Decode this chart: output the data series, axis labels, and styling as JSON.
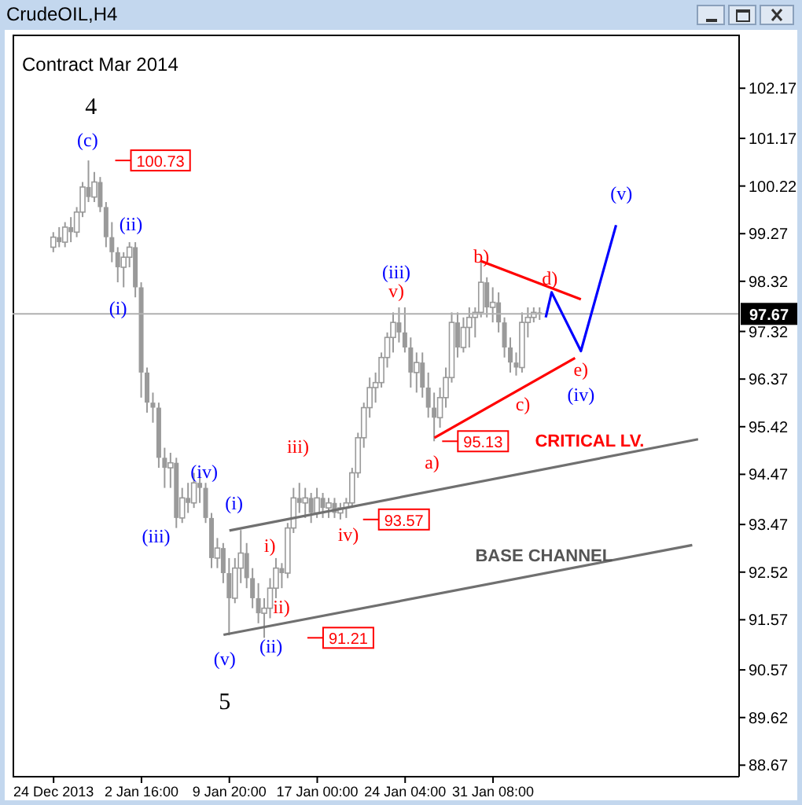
{
  "chart_data": {
    "type": "candlestick",
    "title": "CrudeOIL,H4",
    "subtitle": "Contract Mar 2014",
    "color": "#9a9a9a",
    "categories": [
      "24 Dec 2013",
      null,
      null,
      null,
      null,
      null,
      null,
      null,
      null,
      null,
      null,
      null,
      null,
      null,
      null,
      "2 Jan 16:00",
      null,
      null,
      null,
      null,
      null,
      null,
      null,
      null,
      null,
      null,
      null,
      null,
      null,
      null,
      "9 Jan 20:00",
      null,
      null,
      null,
      null,
      null,
      null,
      null,
      null,
      null,
      null,
      null,
      null,
      null,
      null,
      "17 Jan 00:00",
      null,
      null,
      null,
      null,
      null,
      null,
      null,
      null,
      null,
      null,
      null,
      null,
      null,
      null,
      "24 Jan 04:00",
      null,
      null,
      null,
      null,
      null,
      null,
      null,
      null,
      null,
      null,
      null,
      null,
      null,
      null,
      "31 Jan 08:00",
      null,
      null,
      null,
      null,
      null,
      null,
      null,
      null,
      null,
      null,
      null,
      null,
      null,
      null,
      null,
      null,
      null,
      null,
      null,
      null,
      null,
      null,
      null,
      null,
      null,
      null,
      null,
      null,
      null,
      null,
      null,
      null,
      null,
      null,
      null
    ],
    "ohlc": [
      [
        99.0,
        99.3,
        98.9,
        99.2
      ],
      [
        99.2,
        99.4,
        99.0,
        99.1
      ],
      [
        99.1,
        99.5,
        99.0,
        99.4
      ],
      [
        99.4,
        99.6,
        99.1,
        99.3
      ],
      [
        99.3,
        99.8,
        99.2,
        99.7
      ],
      [
        99.7,
        100.3,
        99.6,
        100.2
      ],
      [
        100.2,
        100.73,
        99.9,
        100.0
      ],
      [
        100.0,
        100.5,
        99.9,
        100.3
      ],
      [
        100.3,
        100.4,
        99.7,
        99.8
      ],
      [
        99.8,
        99.9,
        99.0,
        99.2
      ],
      [
        99.2,
        99.5,
        98.7,
        98.9
      ],
      [
        98.9,
        99.0,
        98.3,
        98.6
      ],
      [
        98.6,
        98.9,
        98.2,
        98.8
      ],
      [
        98.8,
        99.1,
        98.6,
        99.0
      ],
      [
        99.0,
        99.1,
        98.0,
        98.2
      ],
      [
        98.2,
        98.3,
        96.0,
        96.5
      ],
      [
        96.5,
        96.6,
        95.7,
        95.9
      ],
      [
        95.9,
        96.1,
        95.5,
        95.8
      ],
      [
        95.8,
        95.9,
        94.6,
        94.8
      ],
      [
        94.8,
        95.0,
        94.2,
        94.6
      ],
      [
        94.6,
        94.9,
        94.2,
        94.7
      ],
      [
        94.7,
        94.8,
        93.4,
        93.6
      ],
      [
        93.6,
        94.2,
        93.5,
        94.0
      ],
      [
        94.0,
        94.3,
        93.7,
        93.9
      ],
      [
        93.9,
        94.5,
        93.8,
        94.3
      ],
      [
        94.3,
        94.5,
        93.9,
        94.2
      ],
      [
        94.2,
        94.3,
        93.5,
        93.6
      ],
      [
        93.6,
        93.7,
        92.6,
        92.8
      ],
      [
        92.8,
        93.2,
        92.6,
        93.0
      ],
      [
        93.0,
        93.1,
        92.3,
        92.5
      ],
      [
        92.5,
        92.8,
        91.26,
        92.0
      ],
      [
        92.0,
        92.8,
        91.9,
        92.6
      ],
      [
        92.6,
        93.36,
        92.3,
        92.9
      ],
      [
        92.9,
        93.1,
        92.2,
        92.4
      ],
      [
        92.4,
        92.6,
        91.8,
        92.0
      ],
      [
        92.0,
        92.3,
        91.5,
        91.7
      ],
      [
        91.7,
        92.0,
        91.21,
        91.8
      ],
      [
        91.8,
        92.4,
        91.6,
        92.2
      ],
      [
        92.2,
        92.8,
        92.0,
        92.6
      ],
      [
        92.6,
        92.7,
        92.2,
        92.5
      ],
      [
        92.5,
        93.5,
        92.4,
        93.4
      ],
      [
        93.4,
        94.2,
        93.3,
        94.0
      ],
      [
        94.0,
        94.3,
        93.7,
        93.9
      ],
      [
        93.9,
        94.2,
        93.6,
        94.0
      ],
      [
        94.0,
        94.1,
        93.5,
        93.7
      ],
      [
        93.7,
        94.2,
        93.6,
        94.0
      ],
      [
        94.0,
        94.1,
        93.6,
        93.8
      ],
      [
        93.8,
        94.0,
        93.6,
        93.9
      ],
      [
        93.9,
        94.0,
        93.6,
        93.7
      ],
      [
        93.7,
        93.9,
        93.57,
        93.8
      ],
      [
        93.8,
        94.0,
        93.6,
        93.9
      ],
      [
        93.9,
        94.6,
        93.8,
        94.5
      ],
      [
        94.5,
        95.3,
        94.4,
        95.2
      ],
      [
        95.2,
        95.9,
        95.0,
        95.8
      ],
      [
        95.8,
        96.4,
        95.6,
        96.2
      ],
      [
        96.2,
        96.5,
        95.9,
        96.3
      ],
      [
        96.3,
        96.9,
        96.2,
        96.8
      ],
      [
        96.8,
        97.3,
        96.6,
        97.2
      ],
      [
        97.2,
        97.7,
        96.9,
        97.5
      ],
      [
        97.5,
        97.8,
        97.1,
        97.3
      ],
      [
        97.3,
        97.8,
        96.9,
        97.0
      ],
      [
        97.0,
        97.2,
        96.2,
        96.5
      ],
      [
        96.5,
        96.9,
        96.1,
        96.7
      ],
      [
        96.7,
        96.9,
        96.0,
        96.2
      ],
      [
        96.2,
        96.5,
        95.6,
        95.8
      ],
      [
        95.8,
        96.1,
        95.13,
        95.6
      ],
      [
        95.6,
        96.2,
        95.4,
        96.0
      ],
      [
        96.0,
        96.6,
        95.8,
        96.4
      ],
      [
        96.4,
        97.7,
        96.3,
        97.5
      ],
      [
        97.5,
        97.7,
        96.8,
        97.0
      ],
      [
        97.0,
        97.6,
        96.9,
        97.4
      ],
      [
        97.4,
        97.8,
        97.0,
        97.6
      ],
      [
        97.6,
        97.8,
        97.2,
        97.7
      ],
      [
        97.7,
        98.72,
        97.6,
        98.3
      ],
      [
        98.3,
        98.4,
        97.6,
        97.8
      ],
      [
        97.8,
        98.2,
        97.5,
        97.9
      ],
      [
        97.9,
        98.1,
        97.3,
        97.5
      ],
      [
        97.5,
        97.6,
        96.8,
        97.0
      ],
      [
        97.0,
        97.2,
        96.5,
        96.7
      ],
      [
        96.7,
        96.9,
        96.44,
        96.6
      ],
      [
        96.6,
        97.7,
        96.5,
        97.5
      ],
      [
        97.5,
        97.8,
        97.2,
        97.6
      ],
      [
        97.6,
        97.8,
        97.5,
        97.7
      ],
      [
        97.7,
        97.8,
        97.55,
        97.67
      ],
      null,
      null,
      null,
      null,
      null,
      null,
      null,
      null,
      null,
      null,
      null,
      null,
      null,
      null,
      null,
      null,
      null,
      null,
      null,
      null,
      null,
      null,
      null,
      null,
      null,
      null,
      null
    ],
    "series": [
      {
        "type": "line",
        "color": "#707070",
        "values": [
          null,
          null,
          null,
          null,
          null,
          null,
          null,
          null,
          null,
          null,
          null,
          null,
          null,
          null,
          null,
          null,
          null,
          null,
          null,
          null,
          null,
          null,
          null,
          null,
          null,
          null,
          null,
          null,
          null,
          null,
          93.35,
          null,
          null,
          null,
          null,
          null,
          null,
          null,
          null,
          null,
          null,
          null,
          null,
          null,
          null,
          null,
          null,
          null,
          null,
          null,
          null,
          null,
          null,
          null,
          null,
          null,
          null,
          null,
          null,
          null,
          null,
          null,
          null,
          null,
          null,
          null,
          null,
          null,
          null,
          null,
          null,
          null,
          null,
          null,
          null,
          null,
          null,
          null,
          null,
          null,
          null,
          null,
          null,
          null,
          null,
          null,
          null,
          null,
          null,
          null,
          null,
          null,
          null,
          null,
          null,
          null,
          null,
          null,
          null,
          null,
          null,
          null,
          null,
          null,
          null,
          null,
          null,
          null,
          null,
          null,
          95.17
        ]
      },
      {
        "type": "line",
        "color": "#707070",
        "values": [
          null,
          null,
          null,
          null,
          null,
          null,
          null,
          null,
          null,
          null,
          null,
          null,
          null,
          null,
          null,
          null,
          null,
          null,
          null,
          null,
          null,
          null,
          null,
          null,
          null,
          null,
          null,
          null,
          null,
          91.27,
          null,
          null,
          null,
          null,
          null,
          null,
          null,
          null,
          null,
          null,
          null,
          null,
          null,
          null,
          null,
          null,
          null,
          null,
          null,
          null,
          null,
          null,
          null,
          null,
          null,
          null,
          null,
          null,
          null,
          null,
          null,
          null,
          null,
          null,
          null,
          null,
          null,
          null,
          null,
          null,
          null,
          null,
          null,
          null,
          null,
          null,
          null,
          null,
          null,
          null,
          null,
          null,
          null,
          null,
          null,
          null,
          null,
          null,
          null,
          null,
          null,
          null,
          null,
          null,
          null,
          null,
          null,
          null,
          null,
          null,
          null,
          null,
          null,
          null,
          null,
          null,
          null,
          null,
          null,
          93.06,
          null
        ]
      },
      {
        "type": "line",
        "color": "#ff0000",
        "values": [
          null,
          null,
          null,
          null,
          null,
          null,
          null,
          null,
          null,
          null,
          null,
          null,
          null,
          null,
          null,
          null,
          null,
          null,
          null,
          null,
          null,
          null,
          null,
          null,
          null,
          null,
          null,
          null,
          null,
          null,
          null,
          null,
          null,
          null,
          null,
          null,
          null,
          null,
          null,
          null,
          null,
          null,
          null,
          null,
          null,
          null,
          null,
          null,
          null,
          null,
          null,
          null,
          null,
          null,
          null,
          null,
          null,
          null,
          null,
          null,
          null,
          null,
          null,
          null,
          null,
          null,
          null,
          null,
          null,
          null,
          null,
          null,
          null,
          98.72,
          null,
          null,
          null,
          null,
          null,
          null,
          null,
          null,
          null,
          null,
          null,
          null,
          null,
          null,
          null,
          null,
          97.96,
          null,
          null,
          null,
          null,
          null,
          null,
          null,
          null,
          null,
          null,
          null,
          null,
          null,
          null,
          null,
          null,
          null,
          null,
          null,
          null
        ]
      },
      {
        "type": "line",
        "color": "#ff0000",
        "values": [
          null,
          null,
          null,
          null,
          null,
          null,
          null,
          null,
          null,
          null,
          null,
          null,
          null,
          null,
          null,
          null,
          null,
          null,
          null,
          null,
          null,
          null,
          null,
          null,
          null,
          null,
          null,
          null,
          null,
          null,
          null,
          null,
          null,
          null,
          null,
          null,
          null,
          null,
          null,
          null,
          null,
          null,
          null,
          null,
          null,
          null,
          null,
          null,
          null,
          null,
          null,
          null,
          null,
          null,
          null,
          null,
          null,
          null,
          null,
          null,
          null,
          null,
          null,
          null,
          null,
          95.2,
          null,
          null,
          null,
          null,
          null,
          null,
          null,
          null,
          null,
          null,
          null,
          null,
          null,
          null,
          null,
          null,
          null,
          null,
          null,
          null,
          null,
          null,
          null,
          96.79,
          null,
          null,
          null,
          null,
          null,
          null,
          null,
          null,
          null,
          null,
          null,
          null,
          null,
          null,
          null,
          null,
          null,
          null,
          null,
          null,
          null
        ]
      },
      {
        "type": "line",
        "color": "#0000ff",
        "values": [
          null,
          null,
          null,
          null,
          null,
          null,
          null,
          null,
          null,
          null,
          null,
          null,
          null,
          null,
          null,
          null,
          null,
          null,
          null,
          null,
          null,
          null,
          null,
          null,
          null,
          null,
          null,
          null,
          null,
          null,
          null,
          null,
          null,
          null,
          null,
          null,
          null,
          null,
          null,
          null,
          null,
          null,
          null,
          null,
          null,
          null,
          null,
          null,
          null,
          null,
          null,
          null,
          null,
          null,
          null,
          null,
          null,
          null,
          null,
          null,
          null,
          null,
          null,
          null,
          null,
          null,
          null,
          null,
          null,
          null,
          null,
          null,
          null,
          null,
          null,
          null,
          null,
          null,
          null,
          null,
          null,
          null,
          null,
          null,
          97.6,
          98.1,
          null,
          null,
          null,
          null,
          96.93,
          null,
          null,
          null,
          null,
          null,
          99.44,
          null,
          null,
          null,
          null,
          null,
          null,
          null,
          null,
          null,
          null,
          null,
          null,
          null,
          null
        ]
      }
    ],
    "ylim": [
      88.44,
      103.24
    ],
    "yticks": [
      88.67,
      89.62,
      90.57,
      91.57,
      92.52,
      93.47,
      94.47,
      95.42,
      96.37,
      97.32,
      98.32,
      99.27,
      100.22,
      101.17,
      102.17
    ],
    "ref_lines": [
      {
        "axis": "y",
        "value": 97.67,
        "label": "97.67",
        "color": "#b0b0b0"
      }
    ],
    "annotations": [
      "4",
      "(c)",
      "100.73",
      "(ii)",
      "(i)",
      "(iii)",
      "(iv)",
      "(i)",
      "(v)",
      "5",
      "i)",
      "ii)",
      "(ii)",
      "91.21",
      "iii)",
      "iv)",
      "93.57",
      "(iii)",
      "v)",
      "a)",
      "95.13",
      "b)",
      "c)",
      "d)",
      "e)",
      "(iv)",
      "(v)",
      "CRITICAL LV.",
      "BASE CHANNEL"
    ],
    "legend": false,
    "grid": false
  }
}
